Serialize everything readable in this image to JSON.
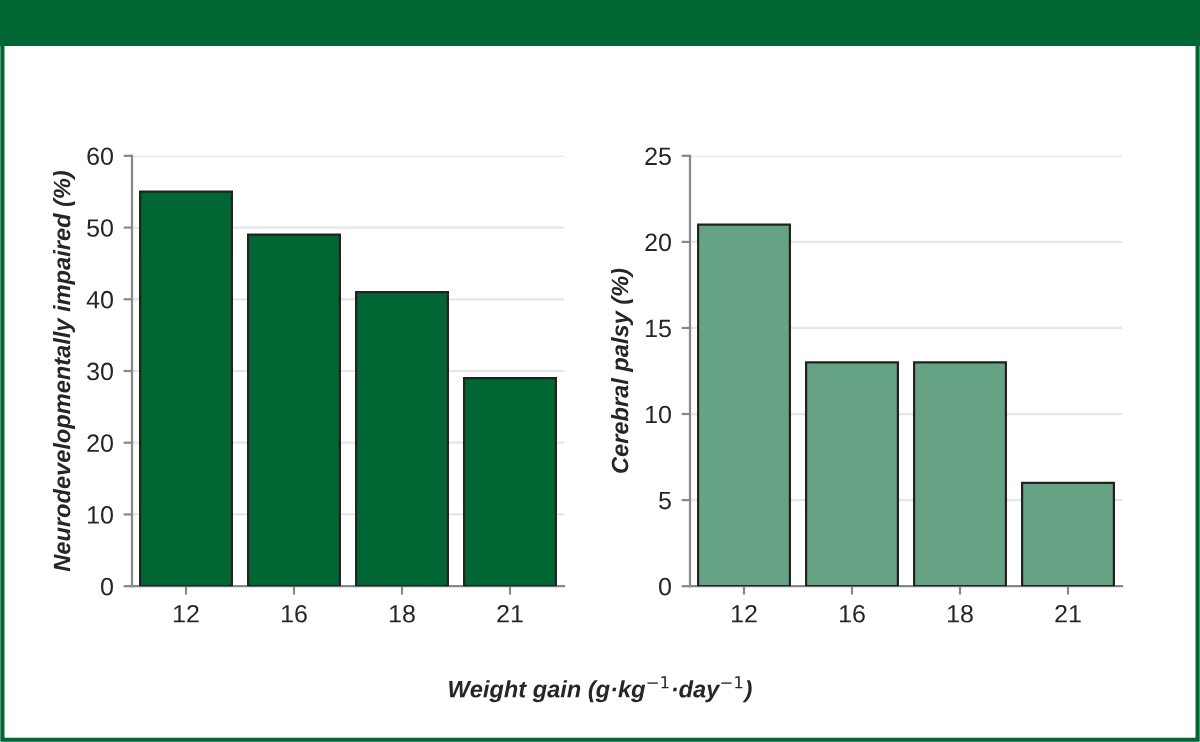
{
  "chart_data": [
    {
      "type": "bar",
      "categories": [
        "12",
        "16",
        "18",
        "21"
      ],
      "values": [
        55,
        49,
        41,
        29
      ],
      "color": "#006633",
      "ylabel": "Neurodevelopmentally impaired (%)",
      "xlabel": "Weight gain (g·kg$^{−1}$·day$^{−1}$)",
      "ylim": [
        0,
        60
      ],
      "yticks": [
        0,
        10,
        20,
        30,
        40,
        50,
        60
      ],
      "grid": "y"
    },
    {
      "type": "bar",
      "categories": [
        "12",
        "16",
        "18",
        "21"
      ],
      "values": [
        21,
        13,
        13,
        6
      ],
      "color": "#66a385",
      "ylabel": "Cerebral palsy (%)",
      "ylim": [
        0,
        25
      ],
      "yticks": [
        0,
        5,
        10,
        15,
        20,
        25
      ],
      "grid": "y"
    }
  ]
}
